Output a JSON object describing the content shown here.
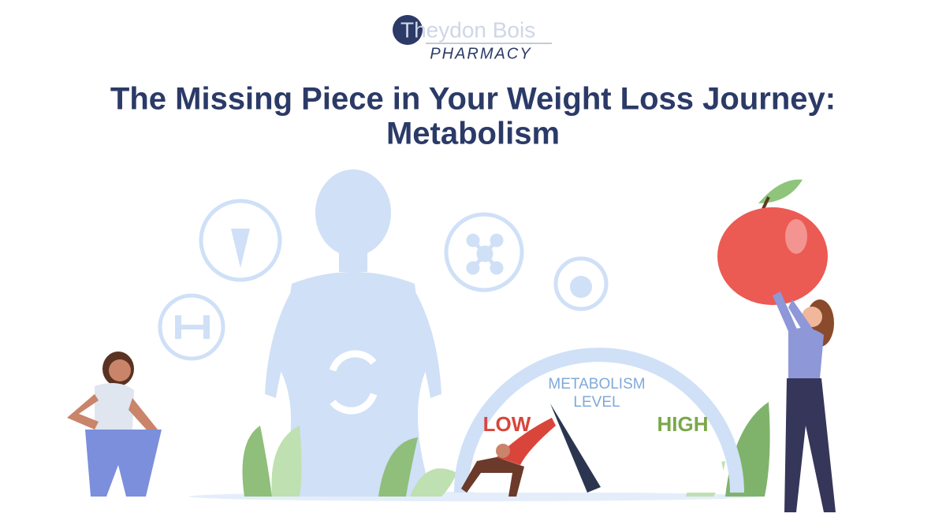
{
  "logo": {
    "name": "Theydon Bois",
    "subtitle": "PHARMACY"
  },
  "title": {
    "lines": [
      "The Missing Piece in Your Weight Loss Journey:",
      "Metabolism"
    ]
  },
  "gauge": {
    "label": [
      "METABOLISM",
      "LEVEL"
    ],
    "low": "LOW",
    "high": "HIGH"
  }
}
